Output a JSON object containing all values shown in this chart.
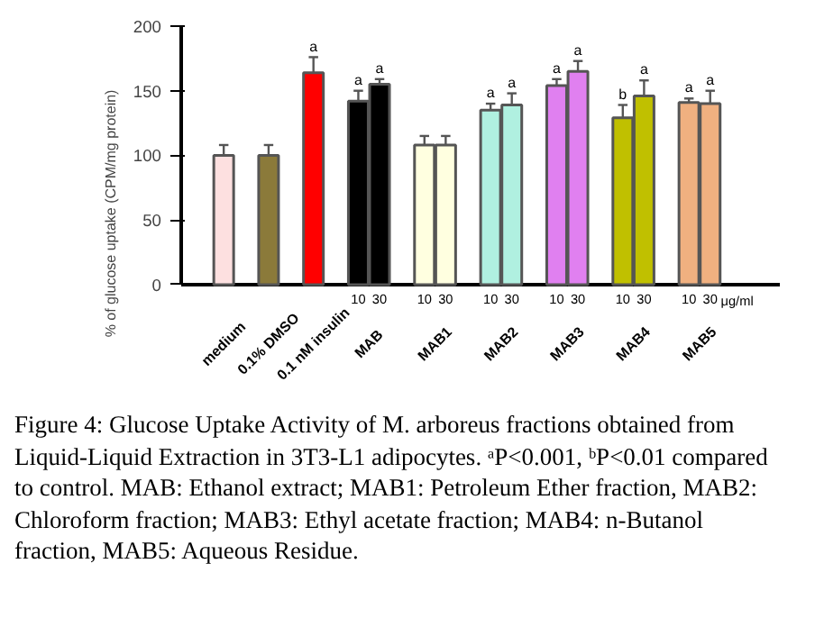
{
  "chart_data": {
    "type": "bar",
    "ylabel": "% of glucose uptake (CPM/mg protein)",
    "categories": [
      "medium",
      "0.1% DMSO",
      "0.1 nM insulin",
      "MAB",
      "MAB1",
      "MAB2",
      "MAB3",
      "MAB4",
      "MAB5"
    ],
    "series": [
      {
        "name": "10",
        "values": [
          100,
          100,
          164,
          142,
          108,
          135,
          154,
          129,
          141
        ],
        "errors": [
          8,
          8,
          12,
          8,
          7,
          5,
          5,
          10,
          3
        ],
        "colors": [
          "#fde0e0",
          "#8b7a3a",
          "#ff0000",
          "#000000",
          "#ffffe0",
          "#b0f0e0",
          "#e080f0",
          "#c0c000",
          "#f0b080"
        ],
        "value_labels": [
          null,
          null,
          "a",
          "a",
          null,
          "a",
          "a",
          "b",
          "a"
        ]
      },
      {
        "name": "30",
        "values": [
          null,
          null,
          null,
          155,
          108,
          139,
          165,
          146,
          140
        ],
        "errors": [
          null,
          null,
          null,
          4,
          7,
          9,
          8,
          12,
          10
        ],
        "colors": [
          "#fde0e0",
          "#8b7a3a",
          "#ff0000",
          "#000000",
          "#ffffe0",
          "#b0f0e0",
          "#e080f0",
          "#c0c000",
          "#f0b080"
        ],
        "value_labels": [
          null,
          null,
          null,
          "a",
          null,
          "a",
          "a",
          "a",
          "a"
        ]
      }
    ],
    "ylim": [
      0,
      200
    ],
    "yticks": [
      0,
      50,
      100,
      150,
      200
    ],
    "annotations": [
      "μg/ml",
      "Figure 4: Glucose Uptake Activity of M. arboreus fractions obtained from Liquid-Liquid Extraction in 3T3-L1 adipocytes. ᵃP<0.001, ᵇP<0.01 compared to control. MAB: Ethanol extract; MAB1: Petroleum Ether fraction, MAB2: Chloroform fraction; MAB3: Ethyl acetate fraction; MAB4: n-Butanol fraction, MAB5: Aqueous Residue."
    ]
  }
}
